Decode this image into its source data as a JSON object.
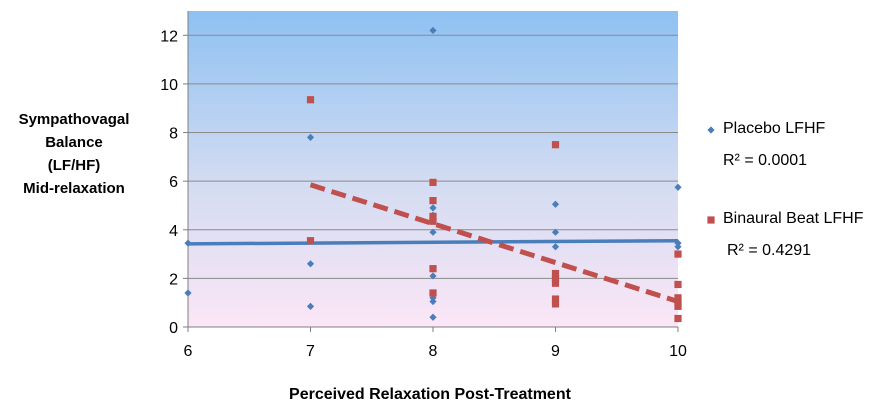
{
  "chart_data": {
    "type": "scatter",
    "title": "",
    "xlabel": "Perceived Relaxation Post-Treatment",
    "ylabel_lines": [
      "Sympathovagal",
      "Balance",
      "(LF/HF)",
      "Mid-relaxation"
    ],
    "xlim": [
      6,
      10
    ],
    "ylim": [
      0,
      13
    ],
    "xticks": [
      6,
      7,
      8,
      9,
      10
    ],
    "yticks": [
      0,
      2,
      4,
      6,
      8,
      10,
      12
    ],
    "grid": "horizontal",
    "legend_position": "right",
    "series": [
      {
        "name": "Placebo LFHF",
        "r_squared": "R² = 0.0001",
        "color": "#4a7ebb",
        "marker": "diamond",
        "points": [
          [
            6,
            3.45
          ],
          [
            6,
            1.4
          ],
          [
            7,
            7.8
          ],
          [
            7,
            2.6
          ],
          [
            7,
            0.85
          ],
          [
            8,
            12.2
          ],
          [
            8,
            4.9
          ],
          [
            8,
            4.6
          ],
          [
            8,
            3.9
          ],
          [
            8,
            2.1
          ],
          [
            8,
            1.2
          ],
          [
            8,
            1.05
          ],
          [
            8,
            0.4
          ],
          [
            9,
            5.05
          ],
          [
            9,
            3.9
          ],
          [
            9,
            3.3
          ],
          [
            10,
            5.75
          ],
          [
            10,
            3.45
          ],
          [
            10,
            3.3
          ]
        ],
        "trendline": {
          "x": [
            6,
            10
          ],
          "y": [
            3.42,
            3.55
          ],
          "style": "solid"
        }
      },
      {
        "name": "Binaural Beat LFHF",
        "r_squared": "R² = 0.4291",
        "color": "#c0504d",
        "marker": "square",
        "points": [
          [
            7,
            9.35
          ],
          [
            7,
            3.55
          ],
          [
            8,
            5.95
          ],
          [
            8,
            5.2
          ],
          [
            8,
            4.55
          ],
          [
            8,
            4.35
          ],
          [
            8,
            2.4
          ],
          [
            8,
            1.4
          ],
          [
            9,
            7.5
          ],
          [
            9,
            2.2
          ],
          [
            9,
            2.0
          ],
          [
            9,
            1.8
          ],
          [
            9,
            1.15
          ],
          [
            9,
            0.95
          ],
          [
            10,
            3.0
          ],
          [
            10,
            1.75
          ],
          [
            10,
            1.2
          ],
          [
            10,
            1.0
          ],
          [
            10,
            0.85
          ],
          [
            10,
            0.35
          ]
        ],
        "trendline": {
          "x": [
            7,
            10
          ],
          "y": [
            5.85,
            1.05
          ],
          "style": "dashed"
        }
      }
    ]
  }
}
